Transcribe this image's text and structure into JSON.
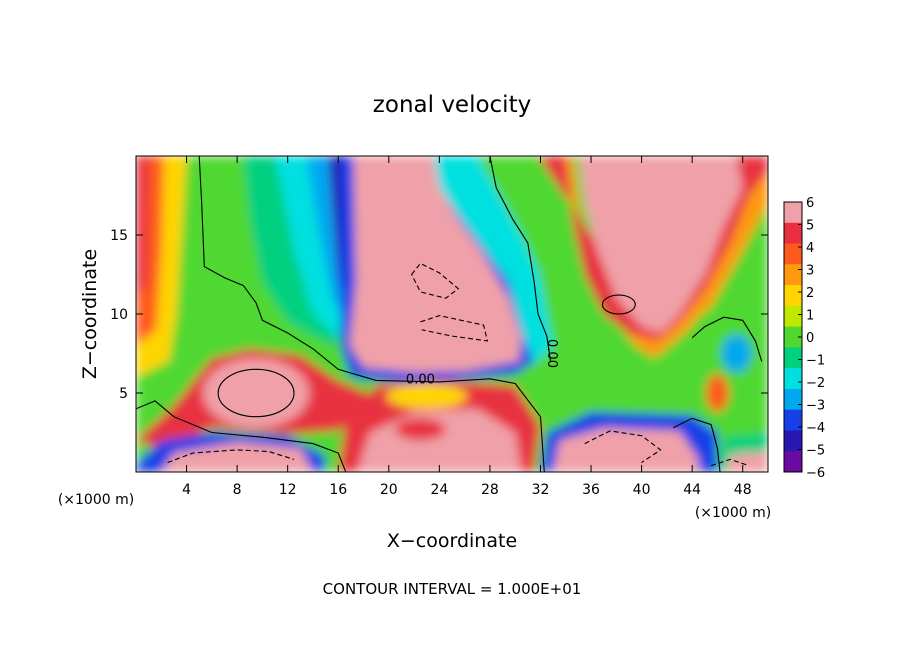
{
  "chart_data": {
    "type": "heatmap",
    "title": "zonal velocity",
    "xlabel": "X−coordinate",
    "ylabel": "Z−coordinate",
    "x_unit": "(×1000 m)",
    "xlim": [
      0,
      50
    ],
    "ylim": [
      0,
      20
    ],
    "x_ticks": [
      4,
      8,
      12,
      16,
      20,
      24,
      28,
      32,
      36,
      40,
      44,
      48
    ],
    "y_ticks": [
      5,
      10,
      15
    ],
    "colorbar": {
      "min": -6,
      "max": 6,
      "ticks": [
        6,
        5,
        4,
        3,
        2,
        1,
        0,
        -1,
        -2,
        -3,
        -4,
        -5,
        -6
      ],
      "colors": [
        "#f0a0a8",
        "#e83040",
        "#ff5a1e",
        "#ff9a10",
        "#ffd400",
        "#c0e800",
        "#50d830",
        "#00d080",
        "#00e0e0",
        "#00a8f0",
        "#1840e8",
        "#2818b0",
        "#6a0aa0"
      ]
    },
    "contour_labels": [
      "0.00",
      "0.00"
    ],
    "footer": "CONTOUR INTERVAL = 1.000E+01",
    "out_of_range_fill": "#ffffff"
  }
}
